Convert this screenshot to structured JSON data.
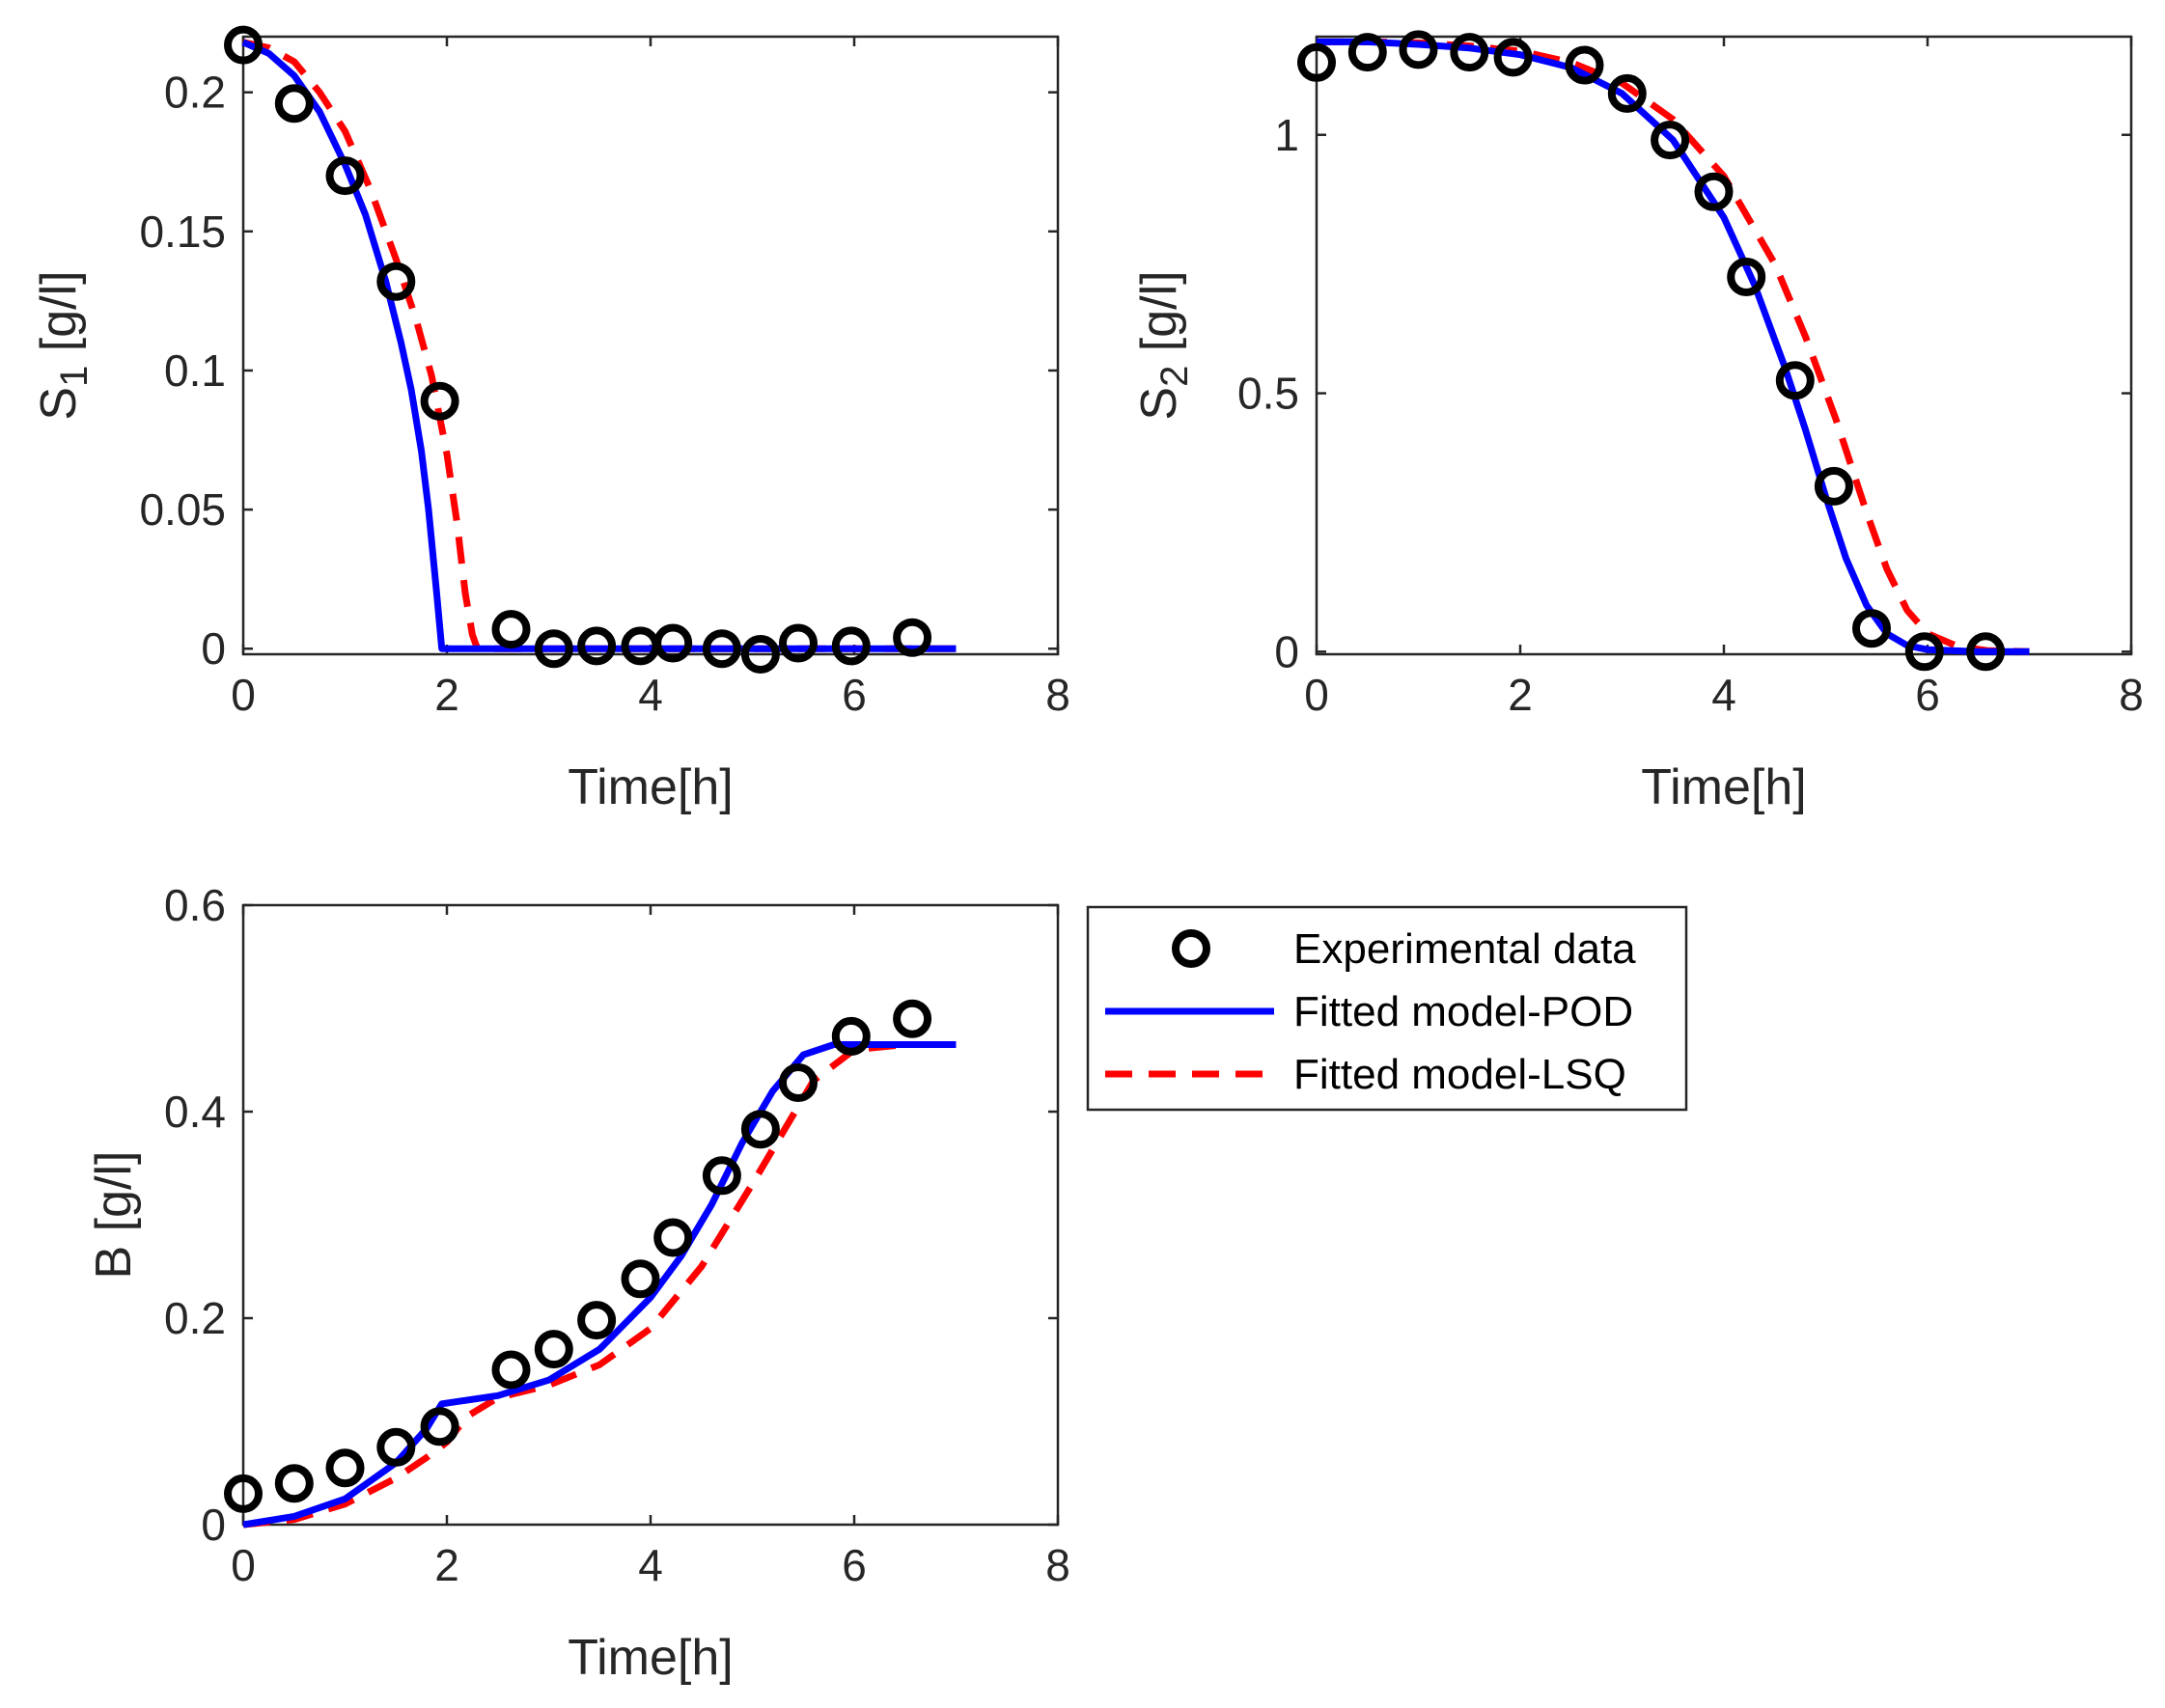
{
  "colors": {
    "data": "#000000",
    "pod": "#0000FF",
    "lsq": "#FF0000",
    "axis": "#262626"
  },
  "legend": {
    "placement": "right-of-bottom-left-plot",
    "items": [
      {
        "key": "data",
        "label": "Experimental data",
        "style": "circle"
      },
      {
        "key": "pod",
        "label": "Fitted model-POD",
        "style": "solid"
      },
      {
        "key": "lsq",
        "label": "Fitted model-LSQ",
        "style": "dashed"
      }
    ]
  },
  "chart_data": [
    {
      "id": "s1",
      "type": "line",
      "position": "top-left",
      "xlabel": "Time[h]",
      "ylabel_main": "S",
      "ylabel_sub": "1",
      "ylabel_rest": " [g/l]",
      "xlim": [
        0,
        8
      ],
      "ylim": [
        -0.002,
        0.22
      ],
      "xticks": [
        0,
        2,
        4,
        6,
        8
      ],
      "yticks": [
        0,
        0.05,
        0.1,
        0.15,
        0.2
      ],
      "ytick_labels": [
        "0",
        "0.05",
        "0.1",
        "0.15",
        "0.2"
      ],
      "experimental": {
        "x": [
          0,
          0.5,
          1.0,
          1.5,
          1.93,
          2.63,
          3.05,
          3.47,
          3.9,
          4.22,
          4.7,
          5.08,
          5.45,
          5.97,
          6.57
        ],
        "y": [
          0.217,
          0.196,
          0.17,
          0.132,
          0.089,
          0.007,
          0.0,
          0.001,
          0.001,
          0.002,
          0.0,
          -0.002,
          0.002,
          0.001,
          0.004
        ]
      },
      "pod": {
        "x": [
          0,
          0.25,
          0.5,
          0.75,
          1.0,
          1.2,
          1.4,
          1.55,
          1.65,
          1.75,
          1.82,
          1.9,
          1.95,
          3,
          5,
          7
        ],
        "y": [
          0.218,
          0.214,
          0.206,
          0.193,
          0.174,
          0.156,
          0.132,
          0.11,
          0.093,
          0.071,
          0.05,
          0.02,
          0.0,
          0.0,
          0.0,
          0.0
        ]
      },
      "lsq": {
        "x": [
          0,
          0.25,
          0.5,
          0.75,
          1.0,
          1.25,
          1.5,
          1.7,
          1.85,
          2.0,
          2.1,
          2.18,
          2.25,
          2.3,
          3,
          5,
          7
        ],
        "y": [
          0.218,
          0.216,
          0.211,
          0.2,
          0.186,
          0.165,
          0.14,
          0.118,
          0.098,
          0.07,
          0.045,
          0.02,
          0.005,
          0.0,
          0.0,
          0.0,
          0.0
        ]
      }
    },
    {
      "id": "s2",
      "type": "line",
      "position": "top-right",
      "xlabel": "Time[h]",
      "ylabel_main": "S",
      "ylabel_sub": "2",
      "ylabel_rest": " [g/l]",
      "xlim": [
        0,
        8
      ],
      "ylim": [
        -0.005,
        1.19
      ],
      "xticks": [
        0,
        2,
        4,
        6,
        8
      ],
      "yticks": [
        0,
        0.5,
        1
      ],
      "ytick_labels": [
        "0",
        "0.5",
        "1"
      ],
      "experimental": {
        "x": [
          0,
          0.5,
          1.0,
          1.5,
          1.93,
          2.63,
          3.05,
          3.47,
          3.9,
          4.22,
          4.7,
          5.08,
          5.45,
          5.97,
          6.57
        ],
        "y": [
          1.14,
          1.16,
          1.165,
          1.16,
          1.15,
          1.135,
          1.08,
          0.99,
          0.89,
          0.725,
          0.525,
          0.32,
          0.045,
          0.0,
          0.0
        ]
      },
      "pod": {
        "x": [
          0,
          0.5,
          1.0,
          1.5,
          2.0,
          2.5,
          3.0,
          3.5,
          4.0,
          4.3,
          4.6,
          4.8,
          5.0,
          5.2,
          5.4,
          5.6,
          5.8,
          6.0,
          6.5,
          7.0
        ],
        "y": [
          1.18,
          1.18,
          1.175,
          1.168,
          1.155,
          1.13,
          1.08,
          0.99,
          0.84,
          0.71,
          0.55,
          0.43,
          0.3,
          0.18,
          0.09,
          0.035,
          0.012,
          0.004,
          0.0,
          0.0
        ]
      },
      "lsq": {
        "x": [
          0,
          0.5,
          1.0,
          1.5,
          2.0,
          2.5,
          3.0,
          3.5,
          4.0,
          4.5,
          4.8,
          5.1,
          5.4,
          5.6,
          5.8,
          6.0,
          6.3,
          6.6,
          7.0
        ],
        "y": [
          1.18,
          1.18,
          1.178,
          1.172,
          1.162,
          1.14,
          1.1,
          1.03,
          0.92,
          0.75,
          0.61,
          0.45,
          0.27,
          0.16,
          0.08,
          0.035,
          0.01,
          0.002,
          0.0
        ]
      }
    },
    {
      "id": "b",
      "type": "line",
      "position": "bottom-left",
      "xlabel": "Time[h]",
      "ylabel_main": "B [g/l]",
      "ylabel_sub": "",
      "ylabel_rest": "",
      "xlim": [
        0,
        8
      ],
      "ylim": [
        0,
        0.6
      ],
      "xticks": [
        0,
        2,
        4,
        6,
        8
      ],
      "yticks": [
        0,
        0.2,
        0.4,
        0.6
      ],
      "ytick_labels": [
        "0",
        "0.2",
        "0.4",
        "0.6"
      ],
      "experimental": {
        "x": [
          0,
          0.5,
          1.0,
          1.5,
          1.93,
          2.63,
          3.05,
          3.47,
          3.9,
          4.22,
          4.7,
          5.08,
          5.45,
          5.97,
          6.57
        ],
        "y": [
          0.03,
          0.04,
          0.055,
          0.075,
          0.095,
          0.15,
          0.17,
          0.198,
          0.238,
          0.278,
          0.338,
          0.383,
          0.428,
          0.473,
          0.49
        ]
      },
      "pod": {
        "x": [
          0,
          0.5,
          1.0,
          1.5,
          1.8,
          1.95,
          2.5,
          3.0,
          3.5,
          4.0,
          4.3,
          4.6,
          4.9,
          5.2,
          5.5,
          5.8,
          6.0,
          6.5,
          7.0
        ],
        "y": [
          0.0,
          0.008,
          0.025,
          0.06,
          0.093,
          0.117,
          0.125,
          0.14,
          0.17,
          0.22,
          0.26,
          0.31,
          0.37,
          0.42,
          0.455,
          0.465,
          0.465,
          0.465,
          0.465
        ]
      },
      "lsq": {
        "x": [
          0,
          0.5,
          1.0,
          1.5,
          1.8,
          2.0,
          2.2,
          2.5,
          3.0,
          3.5,
          4.0,
          4.5,
          5.0,
          5.3,
          5.6,
          6.0,
          6.5,
          7.0
        ],
        "y": [
          0.0,
          0.005,
          0.02,
          0.045,
          0.065,
          0.08,
          0.105,
          0.123,
          0.135,
          0.155,
          0.19,
          0.25,
          0.33,
          0.38,
          0.43,
          0.46,
          0.465,
          0.465
        ]
      }
    }
  ]
}
